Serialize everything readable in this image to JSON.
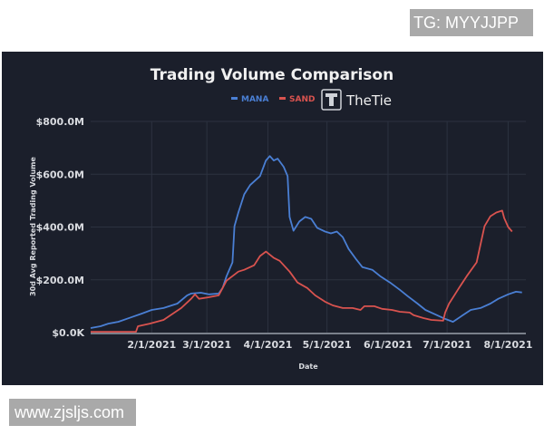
{
  "watermarks": {
    "top": "TG: MYYJJPP",
    "bottom": "www.zjsljs.com"
  },
  "brand": {
    "name": "TheTie",
    "icon": "thetie-logo-icon"
  },
  "colors": {
    "background": "#1b1f2b",
    "mana": "#4a7fd4",
    "sand": "#d9534f",
    "grid": "#2c3240",
    "text": "#d9dbe0"
  },
  "chart_data": {
    "type": "line",
    "title": "Trading Volume Comparison",
    "xlabel": "Date",
    "ylabel": "30d Avg Reported Trading Volume",
    "ylim": [
      0,
      800
    ],
    "y_unit": "$M",
    "yticks": [
      {
        "value": 0,
        "label": "$0.0K"
      },
      {
        "value": 200,
        "label": "$200.0M"
      },
      {
        "value": 400,
        "label": "$400.0M"
      },
      {
        "value": 600,
        "label": "$600.0M"
      },
      {
        "value": 800,
        "label": "$800.0M"
      }
    ],
    "x_domain_days_of_2021": [
      1,
      222
    ],
    "xticks": [
      {
        "day": 32,
        "label": "2/1/2021"
      },
      {
        "day": 60,
        "label": "3/1/2021"
      },
      {
        "day": 91,
        "label": "4/1/2021"
      },
      {
        "day": 121,
        "label": "5/1/2021"
      },
      {
        "day": 152,
        "label": "6/1/2021"
      },
      {
        "day": 182,
        "label": "7/1/2021"
      },
      {
        "day": 213,
        "label": "8/1/2021"
      }
    ],
    "grid": true,
    "legend_position": "top-center",
    "series": [
      {
        "name": "MANA",
        "color": "#4a7fd4",
        "x_day": [
          1,
          6,
          10,
          15,
          22,
          27,
          32,
          38,
          45,
          50,
          52,
          57,
          61,
          66,
          68,
          70,
          73,
          74,
          76,
          79,
          82,
          87,
          90,
          92,
          94,
          96,
          99,
          101,
          102,
          104,
          107,
          110,
          113,
          116,
          120,
          123,
          126,
          129,
          132,
          136,
          139,
          144,
          148,
          153,
          158,
          162,
          167,
          171,
          176,
          181,
          185,
          190,
          194,
          199,
          204,
          208,
          213,
          217,
          220
        ],
        "values": [
          17,
          24,
          34,
          41,
          59,
          72,
          86,
          93,
          110,
          141,
          148,
          151,
          145,
          148,
          169,
          214,
          266,
          403,
          455,
          524,
          559,
          593,
          652,
          669,
          652,
          659,
          628,
          593,
          438,
          386,
          421,
          438,
          431,
          397,
          383,
          376,
          383,
          362,
          317,
          276,
          248,
          238,
          214,
          190,
          162,
          138,
          110,
          86,
          69,
          52,
          41,
          66,
          86,
          93,
          110,
          128,
          145,
          155,
          152
        ]
      },
      {
        "name": "SAND",
        "color": "#d9534f",
        "x_day": [
          1,
          19,
          24,
          25,
          31,
          38,
          45,
          47,
          52,
          54,
          56,
          61,
          66,
          68,
          70,
          73,
          76,
          79,
          84,
          87,
          90,
          94,
          97,
          102,
          106,
          111,
          115,
          120,
          124,
          129,
          134,
          138,
          140,
          145,
          149,
          154,
          158,
          163,
          165,
          170,
          174,
          180,
          181,
          183,
          186,
          188,
          192,
          197,
          199,
          201,
          204,
          207,
          210,
          211,
          213,
          215
        ],
        "values": [
          3,
          3,
          3,
          24,
          34,
          48,
          83,
          93,
          128,
          145,
          128,
          134,
          141,
          169,
          197,
          214,
          231,
          238,
          255,
          290,
          307,
          283,
          272,
          231,
          190,
          169,
          141,
          117,
          103,
          93,
          93,
          86,
          100,
          100,
          90,
          86,
          79,
          76,
          66,
          55,
          48,
          45,
          76,
          110,
          145,
          169,
          214,
          266,
          334,
          403,
          441,
          455,
          462,
          434,
          400,
          383
        ]
      }
    ]
  }
}
